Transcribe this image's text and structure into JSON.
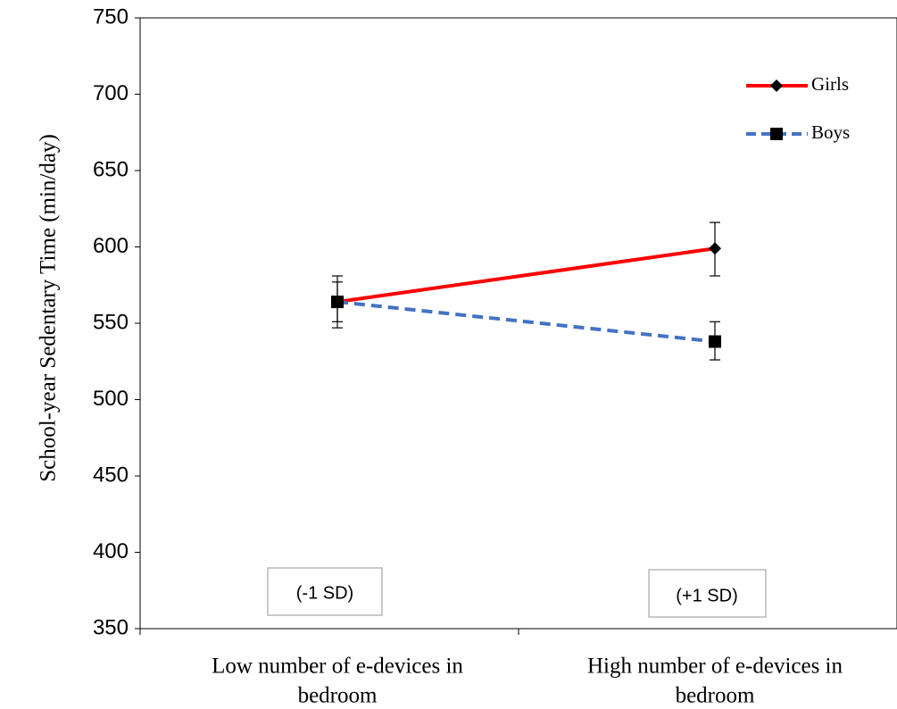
{
  "chart_data": {
    "type": "line",
    "title": "",
    "xlabel": "",
    "ylabel": "School-year Sedentary Time (min/day)",
    "ylim": [
      350,
      750
    ],
    "yticks": [
      350,
      400,
      450,
      500,
      550,
      600,
      650,
      700,
      750
    ],
    "categories": [
      [
        "Low number of e-devices in",
        "bedroom"
      ],
      [
        "High number of e-devices in",
        "bedroom"
      ]
    ],
    "series": [
      {
        "name": "Girls",
        "values": [
          564,
          599
        ],
        "error_low": [
          547,
          581
        ],
        "error_high": [
          581,
          616
        ],
        "color": "#ff0000",
        "line_style": "solid",
        "marker": "diamond"
      },
      {
        "name": "Boys",
        "values": [
          564,
          538
        ],
        "error_low": [
          551,
          526
        ],
        "error_high": [
          577,
          551
        ],
        "color": "#4472c4",
        "line_style": "dashed",
        "marker": "square"
      }
    ],
    "annotations": [
      "(-1 SD)",
      "(+1 SD)"
    ],
    "legend": "top-right",
    "grid": false
  }
}
